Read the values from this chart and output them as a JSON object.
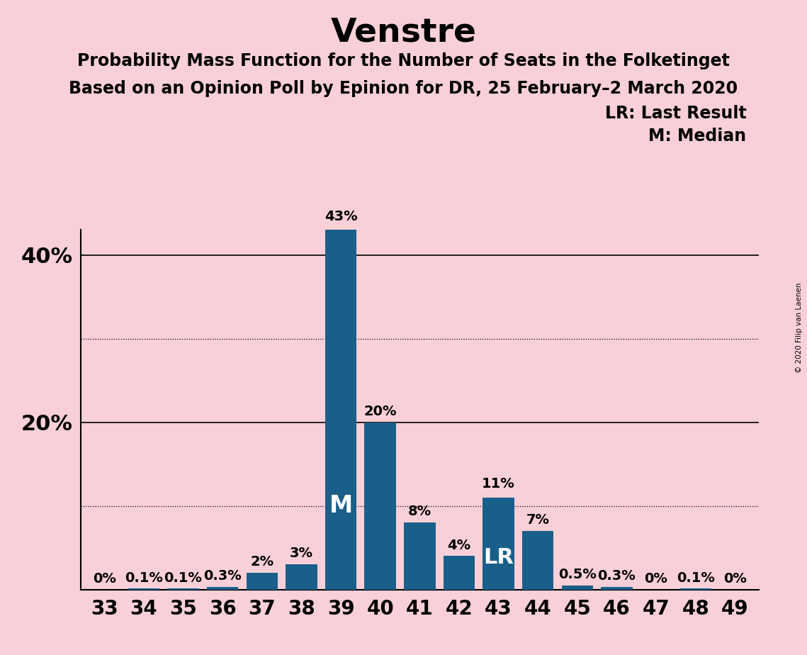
{
  "title": "Venstre",
  "subtitle1": "Probability Mass Function for the Number of Seats in the Folketinget",
  "subtitle2": "Based on an Opinion Poll by Epinion for DR, 25 February–2 March 2020",
  "copyright": "© 2020 Filip van Laenen",
  "categories": [
    33,
    34,
    35,
    36,
    37,
    38,
    39,
    40,
    41,
    42,
    43,
    44,
    45,
    46,
    47,
    48,
    49
  ],
  "values": [
    0.0,
    0.1,
    0.1,
    0.3,
    2.0,
    3.0,
    43.0,
    20.0,
    8.0,
    4.0,
    11.0,
    7.0,
    0.5,
    0.3,
    0.0,
    0.1,
    0.0
  ],
  "labels": [
    "0%",
    "0.1%",
    "0.1%",
    "0.3%",
    "2%",
    "3%",
    "43%",
    "20%",
    "8%",
    "4%",
    "11%",
    "7%",
    "0.5%",
    "0.3%",
    "0%",
    "0.1%",
    "0%"
  ],
  "bar_color": "#1a5f8a",
  "background_color": "#f9d0d8",
  "title_fontsize": 34,
  "subtitle_fontsize": 17,
  "label_fontsize": 14,
  "tick_fontsize": 20,
  "ytick_fontsize": 22,
  "legend_fontsize": 17,
  "ylim": [
    0,
    47
  ],
  "yticks": [
    0,
    20,
    40
  ],
  "ytick_labels": [
    "",
    "20%",
    "40%"
  ],
  "solid_gridlines": [
    20.0,
    40.0
  ],
  "dotted_gridlines": [
    10.0,
    30.0
  ],
  "median_seat": 39,
  "last_result_seat": 43,
  "legend_lr": "LR: Last Result",
  "legend_m": "M: Median"
}
